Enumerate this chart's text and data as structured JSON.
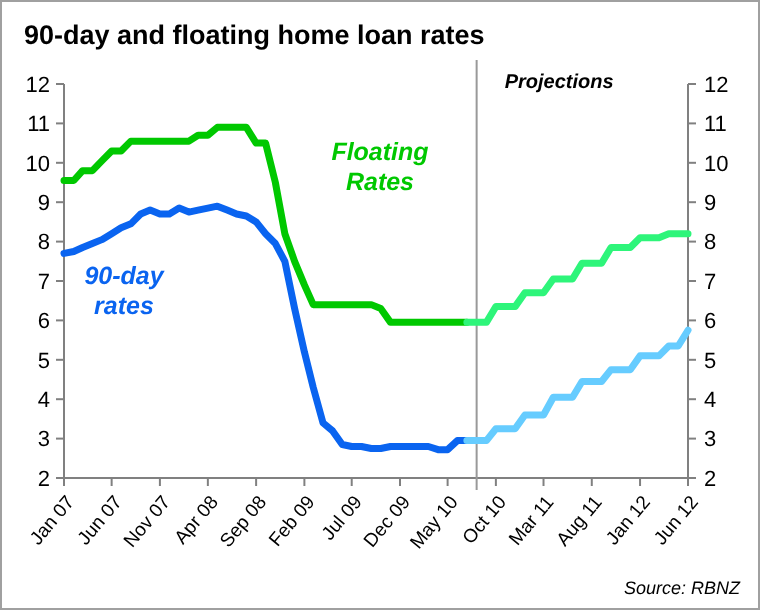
{
  "chart_data": {
    "type": "line",
    "title": "90-day and floating home loan rates",
    "xlim": [
      "2007-01",
      "2012-06"
    ],
    "xticks": [
      {
        "value": "2007-01",
        "label": "Jan 07"
      },
      {
        "value": "2007-06",
        "label": "Jun 07"
      },
      {
        "value": "2007-11",
        "label": "Nov 07"
      },
      {
        "value": "2008-04",
        "label": "Apr 08"
      },
      {
        "value": "2008-09",
        "label": "Sep 08"
      },
      {
        "value": "2009-02",
        "label": "Feb 09"
      },
      {
        "value": "2009-07",
        "label": "Jul 09"
      },
      {
        "value": "2009-12",
        "label": "Dec 09"
      },
      {
        "value": "2010-05",
        "label": "May 10"
      },
      {
        "value": "2010-10",
        "label": "Oct 10"
      },
      {
        "value": "2011-03",
        "label": "Mar 11"
      },
      {
        "value": "2011-08",
        "label": "Aug 11"
      },
      {
        "value": "2012-01",
        "label": "Jan 12"
      },
      {
        "value": "2012-06",
        "label": "Jun 12"
      }
    ],
    "ylim": [
      2,
      12
    ],
    "yticks": [
      2,
      3,
      4,
      5,
      6,
      7,
      8,
      9,
      10,
      11,
      12
    ],
    "y2lim": [
      2,
      12
    ],
    "y2ticks": [
      2,
      3,
      4,
      5,
      6,
      7,
      8,
      9,
      10,
      11,
      12
    ],
    "grid": false,
    "line_style": "solid",
    "marker": "none",
    "series": [
      {
        "name": "Floating Rates",
        "color": "#00c800",
        "x": [
          "2007-01",
          "2007-02",
          "2007-03",
          "2007-04",
          "2007-05",
          "2007-06",
          "2007-07",
          "2007-08",
          "2007-09",
          "2007-10",
          "2007-11",
          "2007-12",
          "2008-01",
          "2008-02",
          "2008-03",
          "2008-04",
          "2008-05",
          "2008-06",
          "2008-07",
          "2008-08",
          "2008-09",
          "2008-10",
          "2008-11",
          "2008-12",
          "2009-01",
          "2009-02",
          "2009-03",
          "2009-04",
          "2009-05",
          "2009-06",
          "2009-07",
          "2009-08",
          "2009-09",
          "2009-10",
          "2009-11",
          "2009-12",
          "2010-01",
          "2010-02",
          "2010-03",
          "2010-04",
          "2010-05",
          "2010-06",
          "2010-07"
        ],
        "values": [
          9.55,
          9.55,
          9.8,
          9.8,
          10.05,
          10.3,
          10.3,
          10.55,
          10.55,
          10.55,
          10.55,
          10.55,
          10.55,
          10.55,
          10.7,
          10.7,
          10.9,
          10.9,
          10.9,
          10.9,
          10.5,
          10.5,
          9.5,
          8.2,
          7.5,
          6.9,
          6.4,
          6.4,
          6.4,
          6.4,
          6.4,
          6.4,
          6.4,
          6.3,
          5.95,
          5.95,
          5.95,
          5.95,
          5.95,
          5.95,
          5.95,
          5.95,
          5.95
        ]
      },
      {
        "color": "#2ef57a",
        "x": [
          "2010-07",
          "2010-08",
          "2010-09",
          "2010-10",
          "2010-11",
          "2010-12",
          "2011-01",
          "2011-02",
          "2011-03",
          "2011-04",
          "2011-05",
          "2011-06",
          "2011-07",
          "2011-08",
          "2011-09",
          "2011-10",
          "2011-11",
          "2011-12",
          "2012-01",
          "2012-02",
          "2012-03",
          "2012-04",
          "2012-05",
          "2012-06"
        ],
        "values": [
          5.95,
          5.95,
          5.95,
          6.35,
          6.35,
          6.35,
          6.7,
          6.7,
          6.7,
          7.05,
          7.05,
          7.05,
          7.45,
          7.45,
          7.45,
          7.85,
          7.85,
          7.85,
          8.1,
          8.1,
          8.1,
          8.2,
          8.2,
          8.2
        ]
      },
      {
        "name": "90-day rates",
        "color": "#0a64f0",
        "x": [
          "2007-01",
          "2007-02",
          "2007-03",
          "2007-04",
          "2007-05",
          "2007-06",
          "2007-07",
          "2007-08",
          "2007-09",
          "2007-10",
          "2007-11",
          "2007-12",
          "2008-01",
          "2008-02",
          "2008-03",
          "2008-04",
          "2008-05",
          "2008-06",
          "2008-07",
          "2008-08",
          "2008-09",
          "2008-10",
          "2008-11",
          "2008-12",
          "2009-01",
          "2009-02",
          "2009-03",
          "2009-04",
          "2009-05",
          "2009-06",
          "2009-07",
          "2009-08",
          "2009-09",
          "2009-10",
          "2009-11",
          "2009-12",
          "2010-01",
          "2010-02",
          "2010-03",
          "2010-04",
          "2010-05",
          "2010-06",
          "2010-07"
        ],
        "values": [
          7.7,
          7.75,
          7.85,
          7.95,
          8.05,
          8.2,
          8.35,
          8.45,
          8.7,
          8.8,
          8.7,
          8.7,
          8.85,
          8.75,
          8.8,
          8.85,
          8.9,
          8.8,
          8.7,
          8.65,
          8.5,
          8.2,
          7.95,
          7.5,
          6.3,
          5.2,
          4.3,
          3.4,
          3.2,
          2.85,
          2.8,
          2.8,
          2.75,
          2.75,
          2.8,
          2.8,
          2.8,
          2.8,
          2.8,
          2.72,
          2.72,
          2.95,
          2.95
        ]
      },
      {
        "color": "#66ccff",
        "x": [
          "2010-07",
          "2010-08",
          "2010-09",
          "2010-10",
          "2010-11",
          "2010-12",
          "2011-01",
          "2011-02",
          "2011-03",
          "2011-04",
          "2011-05",
          "2011-06",
          "2011-07",
          "2011-08",
          "2011-09",
          "2011-10",
          "2011-11",
          "2011-12",
          "2012-01",
          "2012-02",
          "2012-03",
          "2012-04",
          "2012-05",
          "2012-06"
        ],
        "values": [
          2.95,
          2.95,
          2.95,
          3.25,
          3.25,
          3.25,
          3.6,
          3.6,
          3.6,
          4.05,
          4.05,
          4.05,
          4.45,
          4.45,
          4.45,
          4.75,
          4.75,
          4.75,
          5.1,
          5.1,
          5.1,
          5.35,
          5.35,
          5.75
        ]
      }
    ],
    "ref_lines": [
      {
        "axis": "x",
        "value": "2010-08",
        "label": "Projections",
        "color": "#999999"
      }
    ],
    "annotations": [
      "Source: RBNZ"
    ]
  }
}
